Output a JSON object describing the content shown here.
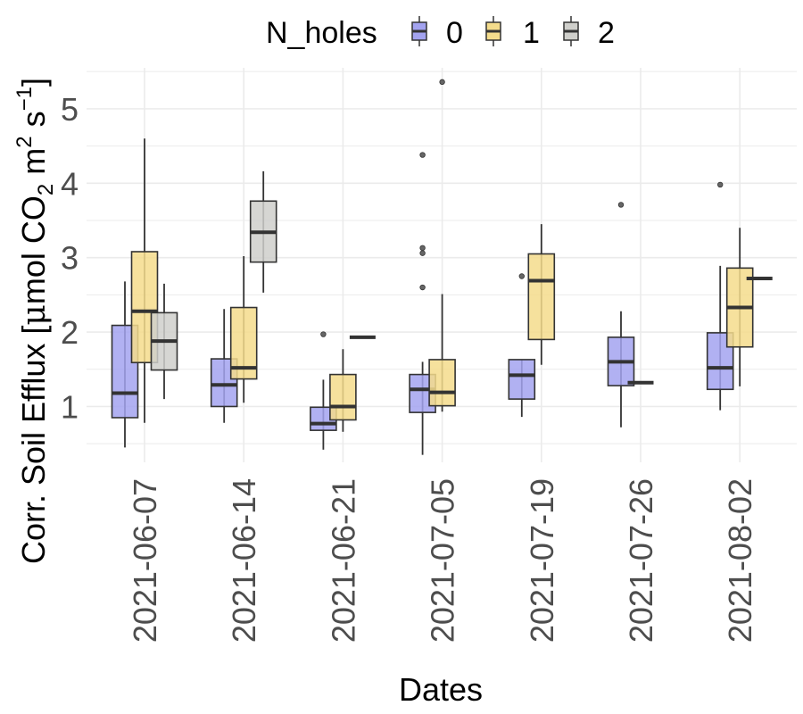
{
  "chart_data": {
    "type": "boxplot",
    "xlabel": "Dates",
    "ylabel_parts": {
      "main": "Corr. Soil Efflux  [",
      "mu": "μ",
      "mol": "mol CO",
      "sub2": "2",
      "m": " m",
      "sup2": "2",
      "s": "  s",
      "supm1": "−1",
      "close": "]"
    },
    "ylim": [
      0.25,
      5.55
    ],
    "yticks": [
      1,
      2,
      3,
      4,
      5
    ],
    "grid": true,
    "legend": {
      "title": "N_holes",
      "position": "top",
      "entries": [
        "0",
        "1",
        "2"
      ]
    },
    "colors": {
      "0": "#a3a3f0",
      "1": "#f4dc8c",
      "2": "#cfcfcb",
      "outline": "#333333",
      "grid": "#ebebeb"
    },
    "categories": [
      "2021-06-07",
      "2021-06-14",
      "2021-06-21",
      "2021-07-05",
      "2021-07-19",
      "2021-07-26",
      "2021-08-02"
    ],
    "boxes": [
      {
        "date": "2021-06-07",
        "group": "0",
        "low": 0.45,
        "q1": 0.85,
        "median": 1.18,
        "q3": 2.09,
        "high": 2.68,
        "outliers": []
      },
      {
        "date": "2021-06-07",
        "group": "1",
        "low": 0.78,
        "q1": 1.59,
        "median": 2.28,
        "q3": 3.08,
        "high": 4.6,
        "outliers": []
      },
      {
        "date": "2021-06-07",
        "group": "2",
        "low": 1.1,
        "q1": 1.49,
        "median": 1.88,
        "q3": 2.26,
        "high": 2.65,
        "outliers": []
      },
      {
        "date": "2021-06-14",
        "group": "0",
        "low": 0.78,
        "q1": 1.0,
        "median": 1.29,
        "q3": 1.64,
        "high": 2.31,
        "outliers": []
      },
      {
        "date": "2021-06-14",
        "group": "1",
        "low": 1.05,
        "q1": 1.37,
        "median": 1.52,
        "q3": 2.33,
        "high": 3.02,
        "outliers": []
      },
      {
        "date": "2021-06-14",
        "group": "2",
        "low": 2.53,
        "q1": 2.94,
        "median": 3.34,
        "q3": 3.76,
        "high": 4.16,
        "outliers": []
      },
      {
        "date": "2021-06-21",
        "group": "0",
        "low": 0.42,
        "q1": 0.68,
        "median": 0.77,
        "q3": 0.99,
        "high": 1.36,
        "outliers": [
          1.97
        ]
      },
      {
        "date": "2021-06-21",
        "group": "1",
        "low": 0.66,
        "q1": 0.82,
        "median": 1.0,
        "q3": 1.43,
        "high": 1.77,
        "outliers": []
      },
      {
        "date": "2021-06-21",
        "group": "2",
        "low": 1.93,
        "q1": 1.93,
        "median": 1.93,
        "q3": 1.93,
        "high": 1.93,
        "outliers": []
      },
      {
        "date": "2021-07-05",
        "group": "0",
        "low": 0.35,
        "q1": 0.92,
        "median": 1.23,
        "q3": 1.43,
        "high": 1.6,
        "outliers": [
          2.6,
          3.06,
          3.13,
          4.38
        ]
      },
      {
        "date": "2021-07-05",
        "group": "1",
        "low": 0.93,
        "q1": 1.01,
        "median": 1.19,
        "q3": 1.63,
        "high": 2.51,
        "outliers": [
          5.36
        ]
      },
      {
        "date": "2021-07-19",
        "group": "0",
        "low": 0.86,
        "q1": 1.1,
        "median": 1.42,
        "q3": 1.63,
        "high": 1.63,
        "outliers": [
          2.75
        ]
      },
      {
        "date": "2021-07-19",
        "group": "1",
        "low": 1.56,
        "q1": 1.9,
        "median": 2.69,
        "q3": 3.05,
        "high": 3.45,
        "outliers": []
      },
      {
        "date": "2021-07-26",
        "group": "0",
        "low": 0.72,
        "q1": 1.28,
        "median": 1.6,
        "q3": 1.93,
        "high": 2.28,
        "outliers": [
          3.71
        ]
      },
      {
        "date": "2021-07-26",
        "group": "1",
        "low": 1.32,
        "q1": 1.32,
        "median": 1.32,
        "q3": 1.32,
        "high": 1.32,
        "outliers": []
      },
      {
        "date": "2021-08-02",
        "group": "0",
        "low": 0.95,
        "q1": 1.23,
        "median": 1.52,
        "q3": 1.99,
        "high": 2.89,
        "outliers": [
          3.98
        ]
      },
      {
        "date": "2021-08-02",
        "group": "1",
        "low": 1.27,
        "q1": 1.8,
        "median": 2.33,
        "q3": 2.86,
        "high": 3.4,
        "outliers": []
      },
      {
        "date": "2021-08-02",
        "group": "2",
        "low": 2.72,
        "q1": 2.72,
        "median": 2.72,
        "q3": 2.72,
        "high": 2.72,
        "outliers": []
      }
    ]
  }
}
